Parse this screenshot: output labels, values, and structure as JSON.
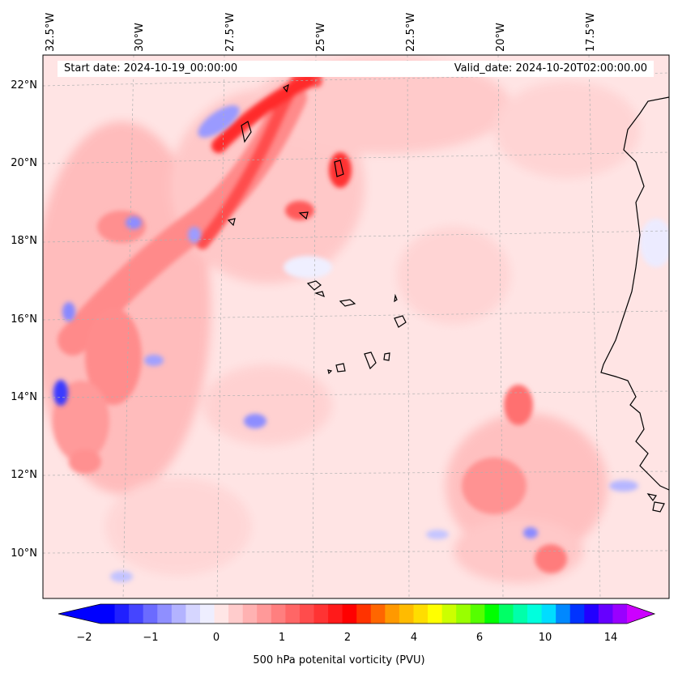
{
  "map": {
    "start_date": "Start date: 2024-10-19_00:00:00",
    "valid_date": "Valid_date: 2024-10-20T02:00:00.00",
    "region": "Eastern tropical Atlantic / Cape Verde islands / West Africa coast",
    "longitude_labels": [
      "32.5°W",
      "30°W",
      "27.5°W",
      "25°W",
      "22.5°W",
      "20°W",
      "17.5°W"
    ],
    "latitude_labels": [
      "22°N",
      "20°N",
      "18°N",
      "16°N",
      "14°N",
      "12°N",
      "10°N"
    ],
    "lon_range": [
      -32.5,
      -15
    ],
    "lat_range": [
      9,
      22.8
    ]
  },
  "colorbar": {
    "title": "500 hPa potenital vorticity (PVU)",
    "tick_labels": [
      "−2",
      "−1",
      "0",
      "1",
      "2",
      "4",
      "6",
      "10",
      "14"
    ],
    "colors": [
      "#0000ff",
      "#2020ff",
      "#4545ff",
      "#6b6bff",
      "#8f8fff",
      "#b3b3ff",
      "#d6d6ff",
      "#eeeeff",
      "#ffe6e6",
      "#ffcccc",
      "#ffb2b2",
      "#ff9999",
      "#ff7f7f",
      "#ff6666",
      "#ff4c4c",
      "#ff3333",
      "#ff1a1a",
      "#ff0000",
      "#ff3300",
      "#ff6600",
      "#ff9900",
      "#ffbb00",
      "#ffdd00",
      "#ffff00",
      "#ccff00",
      "#99ff00",
      "#55ff00",
      "#00ff00",
      "#00ff66",
      "#00ffaa",
      "#00ffdd",
      "#00ddff",
      "#0088ff",
      "#0033ff",
      "#2200ff",
      "#6600ff",
      "#9900ff"
    ],
    "extend_left_color": "#0000ff",
    "extend_right_color": "#cc00ff"
  }
}
